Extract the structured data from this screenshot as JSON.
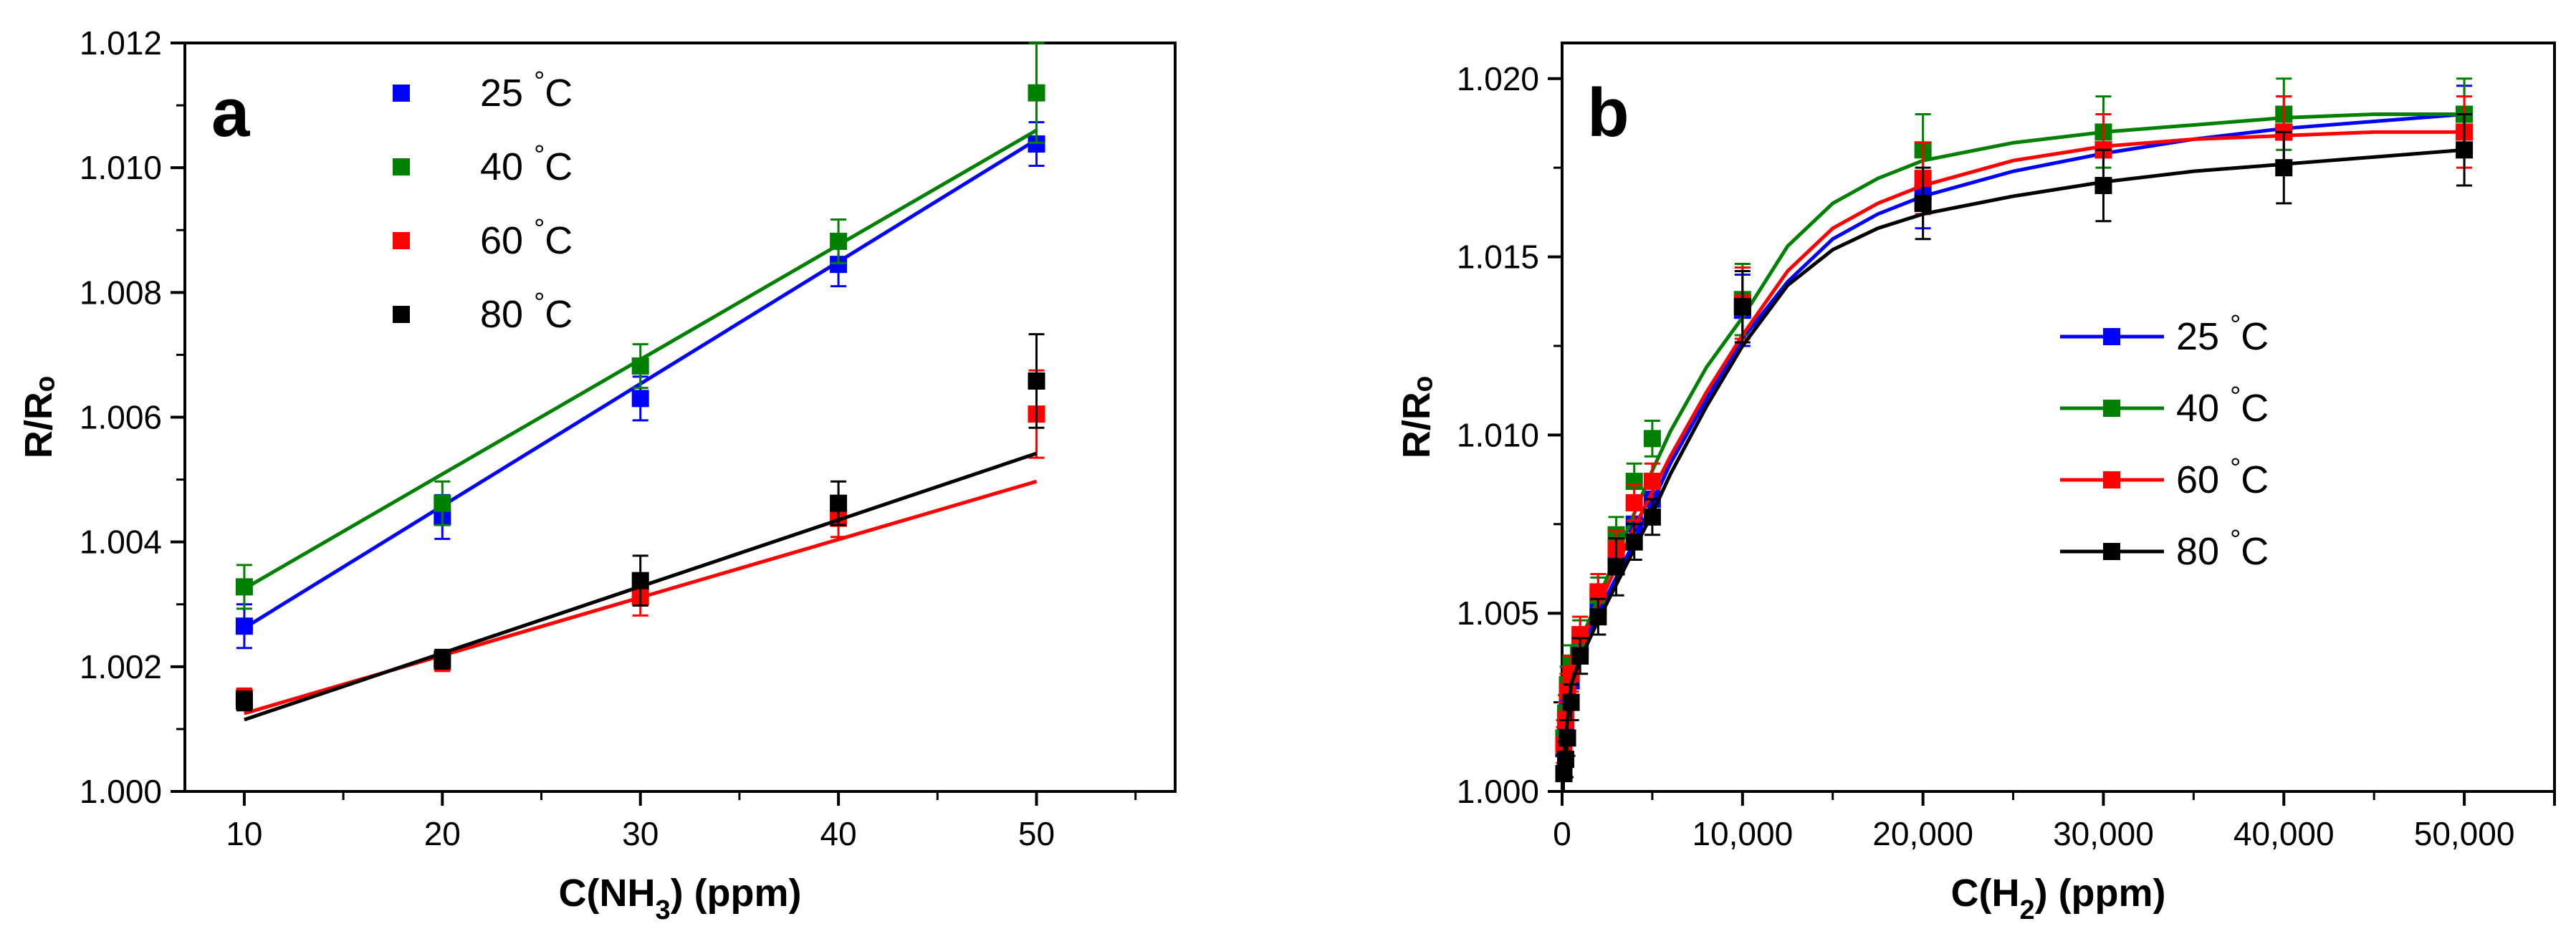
{
  "chart_data": [
    {
      "type": "scatter",
      "panel_label": "a",
      "title": "",
      "xlabel": "C(NH",
      "xlabel_sub": "3",
      "xlabel_tail": ") (ppm)",
      "ylabel": "R/Rₒ",
      "xlim": [
        7,
        57
      ],
      "ylim": [
        1.0,
        1.012
      ],
      "xticks": [
        10,
        20,
        30,
        40,
        50
      ],
      "xtick_labels": [
        "10",
        "20",
        "30",
        "40",
        "50"
      ],
      "yticks": [
        1.0,
        1.002,
        1.004,
        1.006,
        1.008,
        1.01,
        1.012
      ],
      "ytick_labels": [
        "1.000",
        "1.002",
        "1.004",
        "1.006",
        "1.008",
        "1.010",
        "1.012"
      ],
      "grid": false,
      "legend": "top-left",
      "legend_style": "markers",
      "series": [
        {
          "name": "25 °C",
          "color": "#0000ff",
          "x": [
            10,
            20,
            30,
            40,
            50
          ],
          "y": [
            1.00265,
            1.0044,
            1.0063,
            1.00845,
            1.01038
          ],
          "err": [
            0.00035,
            0.00035,
            0.00035,
            0.00035,
            0.00035
          ],
          "fit": [
            [
              10,
              1.00262
            ],
            [
              50,
              1.01045
            ]
          ]
        },
        {
          "name": "40 °C",
          "color": "#008000",
          "x": [
            10,
            20,
            30,
            40,
            50
          ],
          "y": [
            1.00328,
            1.00462,
            1.00682,
            1.00882,
            1.0112
          ],
          "err": [
            0.00035,
            0.00035,
            0.00035,
            0.00035,
            0.0008
          ],
          "fit": [
            [
              10,
              1.00325
            ],
            [
              50,
              1.0106
            ]
          ]
        },
        {
          "name": "60 °C",
          "color": "#ff0000",
          "x": [
            10,
            20,
            30,
            40,
            50
          ],
          "y": [
            1.0015,
            1.00208,
            1.00312,
            1.00438,
            1.00605
          ],
          "err": [
            0.00015,
            0.00015,
            0.0003,
            0.0003,
            0.0007
          ],
          "fit": [
            [
              10,
              1.00125
            ],
            [
              50,
              1.00497
            ]
          ]
        },
        {
          "name": "80 °C",
          "color": "#000000",
          "x": [
            10,
            20,
            30,
            40,
            50
          ],
          "y": [
            1.00145,
            1.00212,
            1.00338,
            1.00462,
            1.00658
          ],
          "err": [
            0.00015,
            0.00015,
            0.0004,
            0.00035,
            0.00075
          ],
          "fit": [
            [
              10,
              1.00115
            ],
            [
              50,
              1.00542
            ]
          ]
        }
      ]
    },
    {
      "type": "line",
      "panel_label": "b",
      "title": "",
      "xlabel": "C(H",
      "xlabel_sub": "2",
      "xlabel_tail": ") (ppm)",
      "ylabel": "R/Rₒ",
      "xlim": [
        0,
        55000
      ],
      "ylim": [
        1.0,
        1.021
      ],
      "xticks": [
        0,
        10000,
        20000,
        30000,
        40000,
        50000
      ],
      "xtick_labels": [
        "0",
        "10,000",
        "20,000",
        "30,000",
        "40,000",
        "50,000"
      ],
      "yticks": [
        1.0,
        1.005,
        1.01,
        1.015,
        1.02
      ],
      "ytick_labels": [
        "1.000",
        "1.005",
        "1.010",
        "1.015",
        "1.020"
      ],
      "grid": false,
      "legend": "center-right",
      "legend_style": "line-marker",
      "series": [
        {
          "name": "25 °C",
          "color": "#0000ff",
          "x": [
            100,
            200,
            300,
            500,
            1000,
            2000,
            3000,
            4000,
            5000,
            10000,
            20000,
            30000,
            40000,
            50000
          ],
          "y": [
            1.0012,
            1.0018,
            1.0025,
            1.0031,
            1.0041,
            1.0052,
            1.0066,
            1.0075,
            1.0082,
            1.0135,
            1.0168,
            1.018,
            1.0185,
            1.019
          ],
          "err": [
            0.0005,
            0.0005,
            0.0005,
            0.0005,
            0.0005,
            0.0005,
            0.0005,
            0.0005,
            0.0005,
            0.001,
            0.001,
            0.001,
            0.001,
            0.0008
          ],
          "fit_x": [
            0,
            500,
            1000,
            2000,
            3000,
            4000,
            5000,
            6000,
            8000,
            10000,
            12500,
            15000,
            17500,
            20000,
            25000,
            30000,
            35000,
            40000,
            45000,
            50000
          ],
          "fit_y": [
            1.0006,
            1.0033,
            1.004,
            1.005,
            1.006,
            1.007,
            1.0081,
            1.0092,
            1.011,
            1.0127,
            1.0143,
            1.0155,
            1.0162,
            1.0167,
            1.0174,
            1.0179,
            1.0183,
            1.0186,
            1.0188,
            1.019
          ]
        },
        {
          "name": "40 °C",
          "color": "#008000",
          "x": [
            100,
            200,
            300,
            500,
            1000,
            2000,
            3000,
            4000,
            5000,
            10000,
            20000,
            30000,
            40000,
            50000
          ],
          "y": [
            1.0015,
            1.0022,
            1.003,
            1.0036,
            1.0043,
            1.0055,
            1.0072,
            1.0087,
            1.0099,
            1.0138,
            1.018,
            1.0185,
            1.019,
            1.019
          ],
          "err": [
            0.0005,
            0.0005,
            0.0005,
            0.0005,
            0.0005,
            0.0005,
            0.0005,
            0.0005,
            0.0005,
            0.001,
            0.001,
            0.001,
            0.001,
            0.001
          ],
          "fit_x": [
            0,
            500,
            1000,
            2000,
            3000,
            4000,
            5000,
            6000,
            8000,
            10000,
            12500,
            15000,
            17500,
            20000,
            25000,
            30000,
            35000,
            40000,
            45000,
            50000
          ],
          "fit_y": [
            1.0006,
            1.0035,
            1.0042,
            1.0054,
            1.0066,
            1.0078,
            1.009,
            1.0101,
            1.0119,
            1.0133,
            1.0153,
            1.0165,
            1.0172,
            1.0177,
            1.0182,
            1.0185,
            1.0187,
            1.0189,
            1.019,
            1.019
          ]
        },
        {
          "name": "60 °C",
          "color": "#ff0000",
          "x": [
            100,
            200,
            300,
            500,
            1000,
            2000,
            3000,
            4000,
            5000,
            10000,
            20000,
            30000,
            40000,
            50000
          ],
          "y": [
            1.0013,
            1.002,
            1.0028,
            1.0033,
            1.0044,
            1.0056,
            1.0068,
            1.0081,
            1.0087,
            1.0137,
            1.0172,
            1.018,
            1.0185,
            1.0185
          ],
          "err": [
            0.0005,
            0.0005,
            0.0005,
            0.0005,
            0.0005,
            0.0005,
            0.0005,
            0.0005,
            0.0005,
            0.001,
            0.001,
            0.001,
            0.001,
            0.001
          ],
          "fit_x": [
            0,
            500,
            1000,
            2000,
            3000,
            4000,
            5000,
            6000,
            8000,
            10000,
            12500,
            15000,
            17500,
            20000,
            25000,
            30000,
            35000,
            40000,
            45000,
            50000
          ],
          "fit_y": [
            1.0006,
            1.0034,
            1.0041,
            1.0052,
            1.0063,
            1.0074,
            1.0084,
            1.0094,
            1.0112,
            1.0128,
            1.0146,
            1.0158,
            1.0165,
            1.017,
            1.0177,
            1.0181,
            1.0183,
            1.0184,
            1.0185,
            1.0185
          ]
        },
        {
          "name": "80 °C",
          "color": "#000000",
          "x": [
            100,
            200,
            300,
            500,
            1000,
            2000,
            3000,
            4000,
            5000,
            10000,
            20000,
            30000,
            40000,
            50000
          ],
          "y": [
            1.0005,
            1.0009,
            1.0015,
            1.0025,
            1.0038,
            1.0049,
            1.0063,
            1.007,
            1.0077,
            1.0136,
            1.0165,
            1.017,
            1.0175,
            1.018
          ],
          "err": [
            0.0005,
            0.0005,
            0.0005,
            0.0005,
            0.0005,
            0.0005,
            0.0008,
            0.0005,
            0.0005,
            0.001,
            0.001,
            0.001,
            0.001,
            0.001
          ],
          "fit_x": [
            0,
            500,
            1000,
            2000,
            3000,
            4000,
            5000,
            6000,
            8000,
            10000,
            12500,
            15000,
            17500,
            20000,
            25000,
            30000,
            35000,
            40000,
            45000,
            50000
          ],
          "fit_y": [
            1.0005,
            1.003,
            1.0037,
            1.0048,
            1.0058,
            1.0068,
            1.0078,
            1.0089,
            1.0108,
            1.0125,
            1.0142,
            1.0152,
            1.0158,
            1.0162,
            1.0167,
            1.0171,
            1.0174,
            1.0176,
            1.0178,
            1.018
          ]
        }
      ]
    }
  ]
}
